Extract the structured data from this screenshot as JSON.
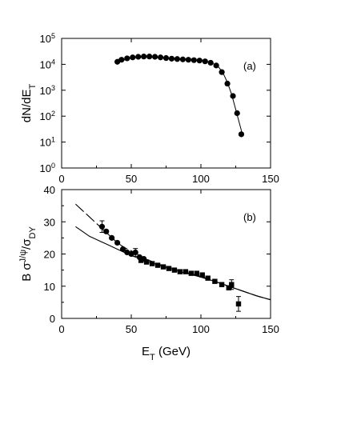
{
  "chart_data": [
    {
      "type": "scatter",
      "panel_label": "(a)",
      "ylabel_parts": [
        "dN/dE",
        "T"
      ],
      "xlim": [
        0,
        150
      ],
      "ylim": [
        1,
        100000
      ],
      "yscale": "log",
      "x_ticks": [
        "0",
        "50",
        "100",
        "150"
      ],
      "y_tick_values": [
        1,
        10,
        100,
        1000,
        10000,
        100000
      ],
      "y_ticks": [
        [
          "10",
          "0"
        ],
        [
          "10",
          "1"
        ],
        [
          "10",
          "2"
        ],
        [
          "10",
          "3"
        ],
        [
          "10",
          "4"
        ],
        [
          "10",
          "5"
        ]
      ],
      "series": [
        {
          "marker": "circle",
          "x": [
            40,
            43,
            47,
            51,
            55,
            59,
            63,
            67,
            71,
            75,
            79,
            83,
            87,
            91,
            95,
            99,
            103,
            107,
            111,
            115,
            119,
            123,
            126,
            129
          ],
          "y": [
            12500,
            15000,
            17000,
            18500,
            19500,
            20000,
            20000,
            19500,
            18500,
            17500,
            16500,
            16000,
            15500,
            15000,
            14500,
            14000,
            13000,
            11500,
            9000,
            5000,
            1800,
            600,
            130,
            20
          ]
        }
      ],
      "curve": {
        "x": [
          40,
          50,
          60,
          70,
          80,
          90,
          100,
          105,
          110,
          113,
          116,
          119,
          122,
          125,
          128,
          130
        ],
        "y": [
          12500,
          17500,
          20000,
          18500,
          16500,
          15200,
          13800,
          12500,
          10000,
          7500,
          4500,
          2000,
          700,
          180,
          45,
          18
        ]
      },
      "grid": false
    },
    {
      "type": "scatter",
      "panel_label": "(b)",
      "ylabel_parts": [
        "B σ",
        "J/ψ",
        "/σ",
        "DY"
      ],
      "xlabel_parts": [
        "E",
        "T",
        " (GeV)"
      ],
      "xlim": [
        0,
        150
      ],
      "ylim": [
        0,
        40
      ],
      "x_ticks": [
        "0",
        "50",
        "100",
        "150"
      ],
      "y_ticks": [
        "0",
        "10",
        "20",
        "30",
        "40"
      ],
      "series": [
        {
          "marker": "circle",
          "x": [
            29,
            32,
            36,
            40,
            44,
            47,
            50,
            53,
            56,
            59
          ],
          "y": [
            28.5,
            27,
            25,
            23.5,
            21.5,
            20.5,
            20,
            20.5,
            19,
            18.5
          ],
          "yerr": [
            1.8,
            0,
            0,
            0,
            0,
            0,
            0,
            1.2,
            0,
            0
          ]
        },
        {
          "marker": "square",
          "x": [
            57,
            61,
            65,
            69,
            73,
            77,
            81,
            85,
            89,
            93,
            97,
            101,
            105,
            110,
            115,
            120,
            122,
            127
          ],
          "y": [
            18,
            17.5,
            17,
            16.5,
            16,
            15.5,
            15,
            14.5,
            14.5,
            14,
            14,
            13.5,
            12.5,
            11.5,
            10.5,
            9.5,
            10.5,
            4.5
          ],
          "yerr": [
            0,
            0,
            0,
            0,
            0,
            0,
            0,
            0,
            0,
            0,
            0,
            0,
            0,
            0,
            0,
            0,
            1.5,
            2.3
          ]
        }
      ],
      "curves": [
        {
          "style": "dashed",
          "x": [
            10,
            15,
            20,
            25,
            30,
            35,
            40,
            45,
            50,
            60,
            70,
            80,
            90,
            100,
            110,
            120,
            130,
            140,
            150
          ],
          "y": [
            35.5,
            33.5,
            31.5,
            29.5,
            27.5,
            25.5,
            23.5,
            22,
            21,
            18.5,
            16.8,
            15.5,
            14.2,
            13,
            11.5,
            10,
            8.5,
            7,
            5.8
          ]
        },
        {
          "style": "solid",
          "x": [
            10,
            15,
            20,
            25,
            30,
            35,
            40,
            45,
            50,
            60,
            70,
            80,
            90,
            100,
            110,
            120,
            130,
            140,
            150
          ],
          "y": [
            28.5,
            27,
            25.5,
            24.5,
            23.5,
            22.5,
            21.5,
            20.5,
            19.5,
            18,
            16.5,
            15,
            14,
            12.8,
            11.5,
            10,
            8.5,
            7,
            5.8
          ]
        }
      ],
      "grid": false
    }
  ]
}
